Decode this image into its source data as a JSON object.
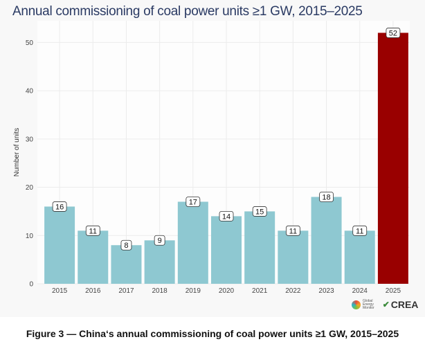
{
  "chart_data": {
    "type": "bar",
    "title": "Annual commissioning of coal power units ≥1 GW, 2015–2025",
    "xlabel": "",
    "ylabel": "Number of units",
    "categories": [
      "2015",
      "2016",
      "2017",
      "2018",
      "2019",
      "2020",
      "2021",
      "2022",
      "2023",
      "2024",
      "2025"
    ],
    "values": [
      16,
      11,
      8,
      9,
      17,
      14,
      15,
      11,
      18,
      11,
      52
    ],
    "ylim": [
      0,
      54.5
    ],
    "yticks": [
      0,
      10,
      20,
      30,
      40,
      50
    ],
    "grid": true,
    "colors": {
      "default": "#8ec8d1",
      "highlight": "#990000"
    },
    "highlight_category": "2025",
    "data_labels": true
  },
  "logos": {
    "gem_lines": [
      "Global",
      "Energy",
      "Monitor"
    ],
    "crea": "CREA"
  },
  "caption": "Figure 3 — China‘s annual commissioning of coal power units ≥1 GW, 2015–2025"
}
